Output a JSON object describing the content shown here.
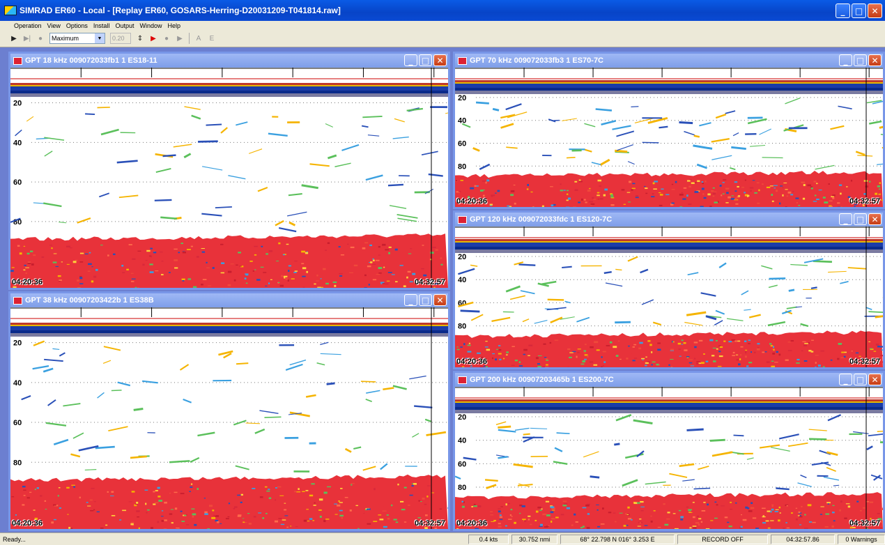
{
  "app": {
    "title": "SIMRAD ER60 - Local - [Replay ER60, GOSARS-Herring-D20031209-T041814.raw]"
  },
  "menu": [
    "Operation",
    "View",
    "Options",
    "Install",
    "Output",
    "Window",
    "Help"
  ],
  "toolbar": {
    "dropdown_value": "Maximum",
    "number_value": "0.20",
    "label_a": "A",
    "label_e": "E"
  },
  "windows": [
    {
      "title": "GPT  18 kHz 009072033fb1 1 ES18-11",
      "depth_labels": [
        "20",
        "40",
        "60",
        "80"
      ],
      "time_start": "04:20:36",
      "time_end": "04:32:57"
    },
    {
      "title": "GPT  38 kHz 00907203422b 1 ES38B",
      "depth_labels": [
        "20",
        "40",
        "60",
        "80"
      ],
      "time_start": "04:20:36",
      "time_end": "04:32:57"
    },
    {
      "title": "GPT  70 kHz 009072033fb3 1 ES70-7C",
      "depth_labels": [
        "20",
        "40",
        "60",
        "80"
      ],
      "time_start": "04:20:36",
      "time_end": "04:32:57"
    },
    {
      "title": "GPT 120 kHz 009072033fdc 1 ES120-7C",
      "depth_labels": [
        "20",
        "40",
        "60",
        "80"
      ],
      "time_start": "04:20:36",
      "time_end": "04:32:57"
    },
    {
      "title": "GPT 200 kHz 00907203465b 1 ES200-7C",
      "depth_labels": [
        "20",
        "40",
        "60",
        "80"
      ],
      "time_start": "04:20:36",
      "time_end": "04:32:57"
    }
  ],
  "status": {
    "ready": "Ready...",
    "speed": "0.4 kts",
    "distance": "30.752 nmi",
    "position": "68° 22.798 N  016° 3.253 E",
    "record": "RECORD OFF",
    "time": "04:32:57.86",
    "warnings": "0 Warnings"
  },
  "colors": {
    "titlebar": "#0a4ad4",
    "mdi_background": "#6c7fd0",
    "bottom_echo": "#e8323a",
    "surface_band": "#1b3ca8"
  },
  "icons": [
    "play-icon",
    "step-icon",
    "record-dot-icon",
    "dropdown-arrow-icon",
    "spin-icon",
    "red-play-icon",
    "minimize-icon",
    "maximize-icon",
    "close-icon"
  ]
}
